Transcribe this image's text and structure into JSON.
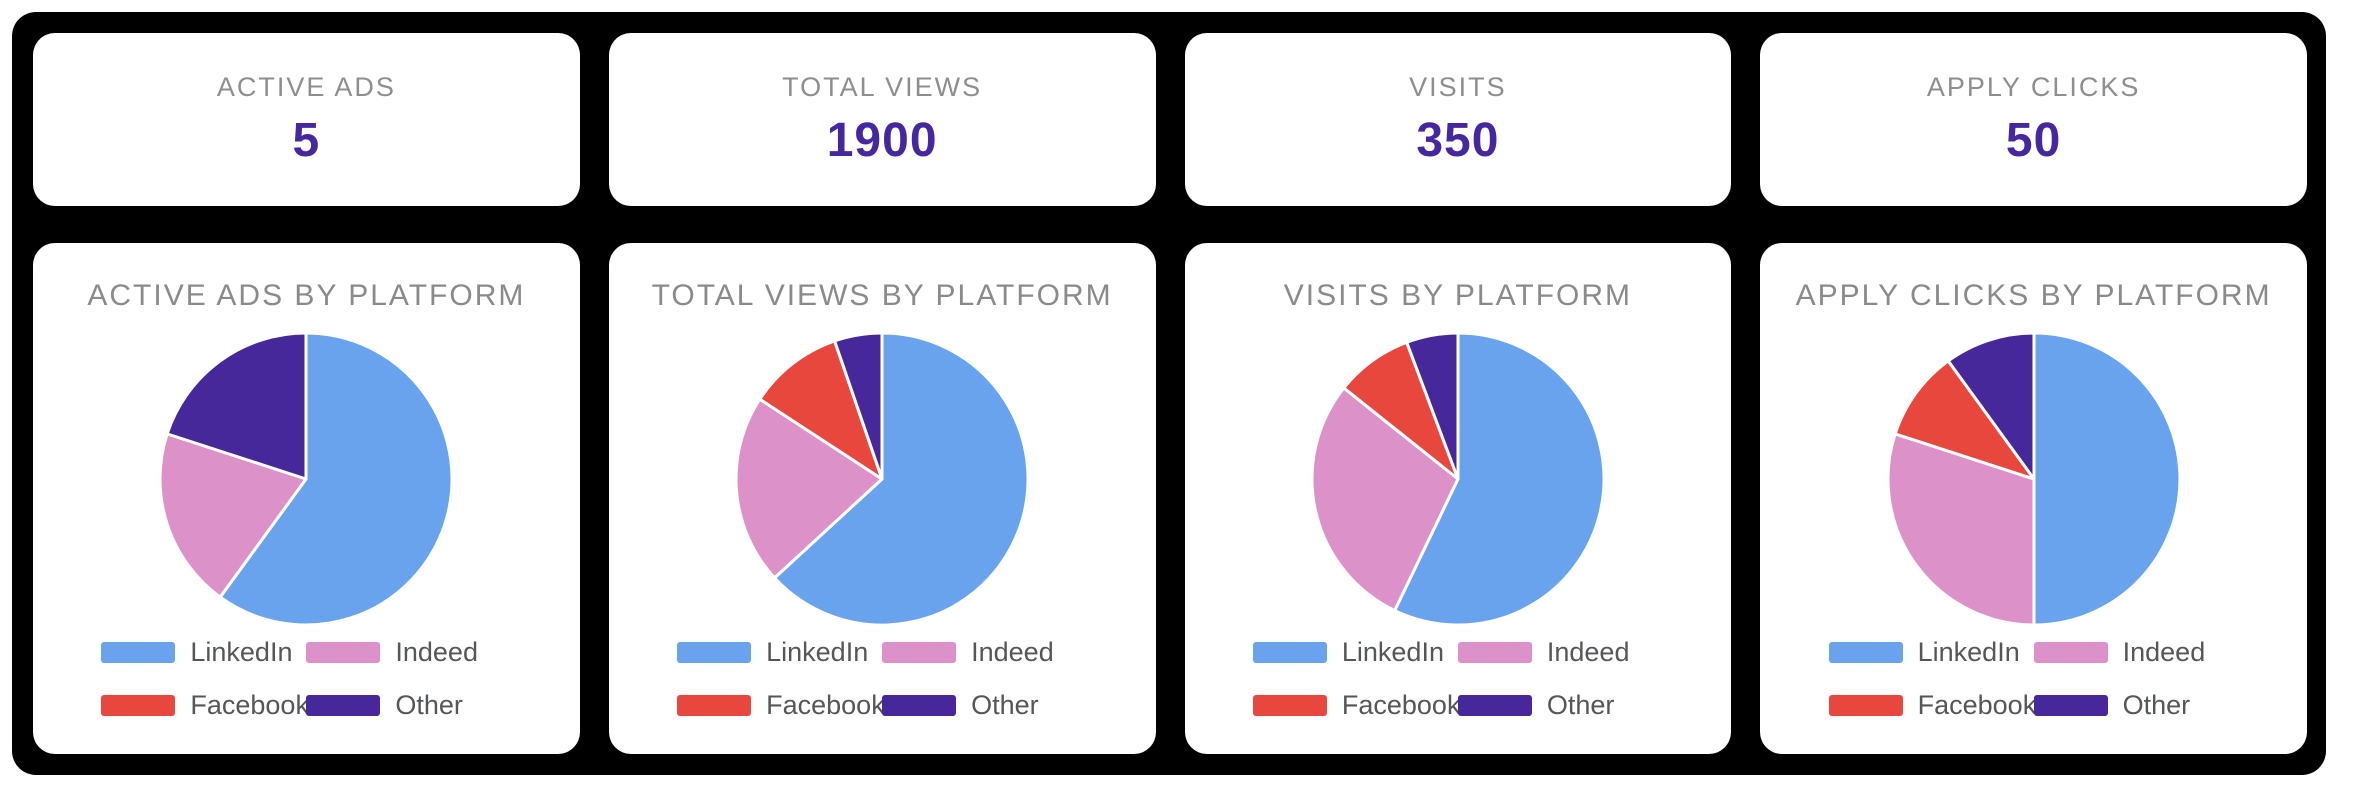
{
  "colors": {
    "canvas_bg": "#000000",
    "card_bg": "#ffffff",
    "stat_label_gray": "#8e8e8e",
    "stat_value_purple": "#4528a0",
    "chart_title_gray": "#8a8a8a",
    "legend_text_gray": "#55565a",
    "slice_border": "#ffffff",
    "linkedin": "#69a3ee",
    "indeed": "#dc91c8",
    "facebook": "#e8473e",
    "other": "#47289b"
  },
  "platforms": [
    {
      "name": "LinkedIn",
      "color": "#69a3ee"
    },
    {
      "name": "Indeed",
      "color": "#dc91c8"
    },
    {
      "name": "Facebook",
      "color": "#e8473e"
    },
    {
      "name": "Other",
      "color": "#47289b"
    }
  ],
  "stat_cards": [
    {
      "label": "ACTIVE ADS",
      "value": "5"
    },
    {
      "label": "TOTAL VIEWS",
      "value": "1900"
    },
    {
      "label": "VISITS",
      "value": "350"
    },
    {
      "label": "APPLY CLICKS",
      "value": "50"
    }
  ],
  "chart_data": [
    {
      "type": "pie",
      "title": "ACTIVE ADS BY PLATFORM",
      "categories": [
        "LinkedIn",
        "Indeed",
        "Facebook",
        "Other"
      ],
      "values": [
        3,
        1,
        0,
        1
      ],
      "total": 5,
      "colors": [
        "#69a3ee",
        "#dc91c8",
        "#e8473e",
        "#47289b"
      ],
      "legend_position": "bottom",
      "start_angle_deg": 0,
      "direction": "clockwise"
    },
    {
      "type": "pie",
      "title": "TOTAL VIEWS BY PLATFORM",
      "categories": [
        "LinkedIn",
        "Indeed",
        "Facebook",
        "Other"
      ],
      "values": [
        1200,
        400,
        200,
        100
      ],
      "total": 1900,
      "colors": [
        "#69a3ee",
        "#dc91c8",
        "#e8473e",
        "#47289b"
      ],
      "legend_position": "bottom",
      "start_angle_deg": 0,
      "direction": "clockwise"
    },
    {
      "type": "pie",
      "title": "VISITS BY PLATFORM",
      "categories": [
        "LinkedIn",
        "Indeed",
        "Facebook",
        "Other"
      ],
      "values": [
        200,
        100,
        30,
        20
      ],
      "total": 350,
      "colors": [
        "#69a3ee",
        "#dc91c8",
        "#e8473e",
        "#47289b"
      ],
      "legend_position": "bottom",
      "start_angle_deg": 0,
      "direction": "clockwise"
    },
    {
      "type": "pie",
      "title": "APPLY CLICKS BY PLATFORM",
      "categories": [
        "LinkedIn",
        "Indeed",
        "Facebook",
        "Other"
      ],
      "values": [
        25,
        15,
        5,
        5
      ],
      "total": 50,
      "colors": [
        "#69a3ee",
        "#dc91c8",
        "#e8473e",
        "#47289b"
      ],
      "legend_position": "bottom",
      "start_angle_deg": 0,
      "direction": "clockwise"
    }
  ]
}
